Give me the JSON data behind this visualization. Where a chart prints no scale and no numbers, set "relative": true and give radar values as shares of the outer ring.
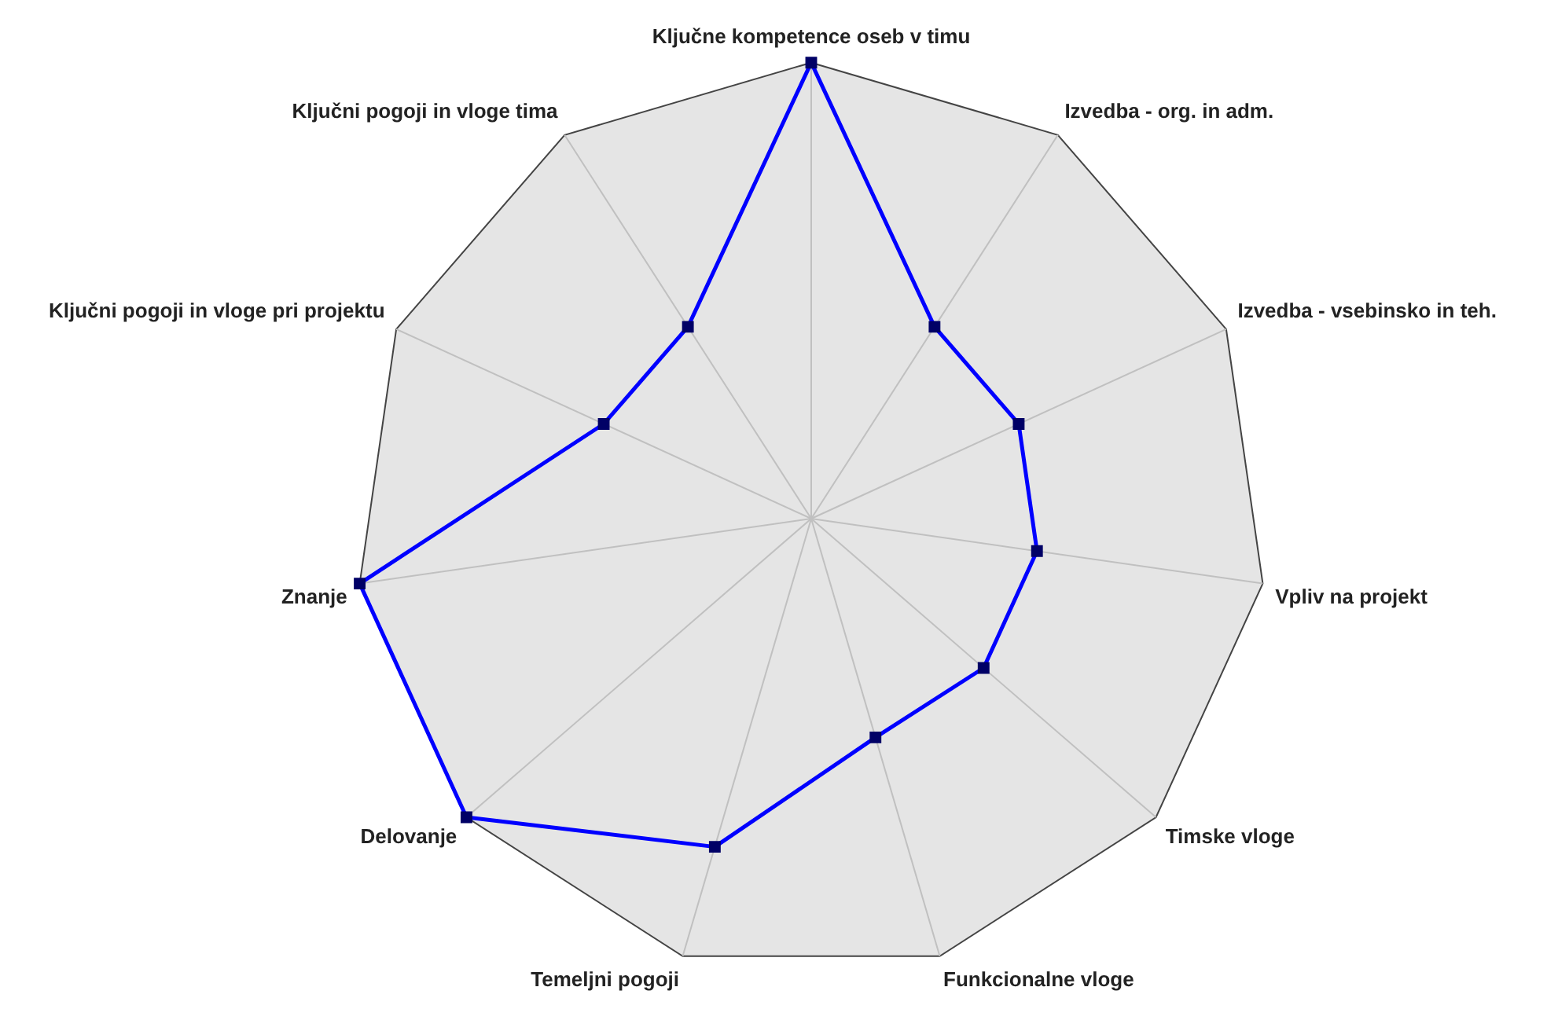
{
  "chart_data": {
    "type": "radar",
    "relative": true,
    "grid": true,
    "legend": false,
    "marker": "square",
    "categories": [
      "Ključne kompetence oseb v timu",
      "Izvedba - org. in adm.",
      "Izvedba - vsebinsko in teh.",
      "Vpliv na projekt",
      "Timske vloge",
      "Funkcionalne vloge",
      "Temeljni pogoji",
      "Delovanje",
      "Znanje",
      "Ključni pogoji in vloge pri projektu",
      "Ključni pogoji in vloge tima"
    ],
    "series": [
      {
        "color": "#0000ff",
        "values": [
          1,
          0.5,
          0.5,
          0.5,
          0.5,
          0.5,
          0.75,
          1,
          1,
          0.5,
          0.5
        ]
      }
    ]
  }
}
